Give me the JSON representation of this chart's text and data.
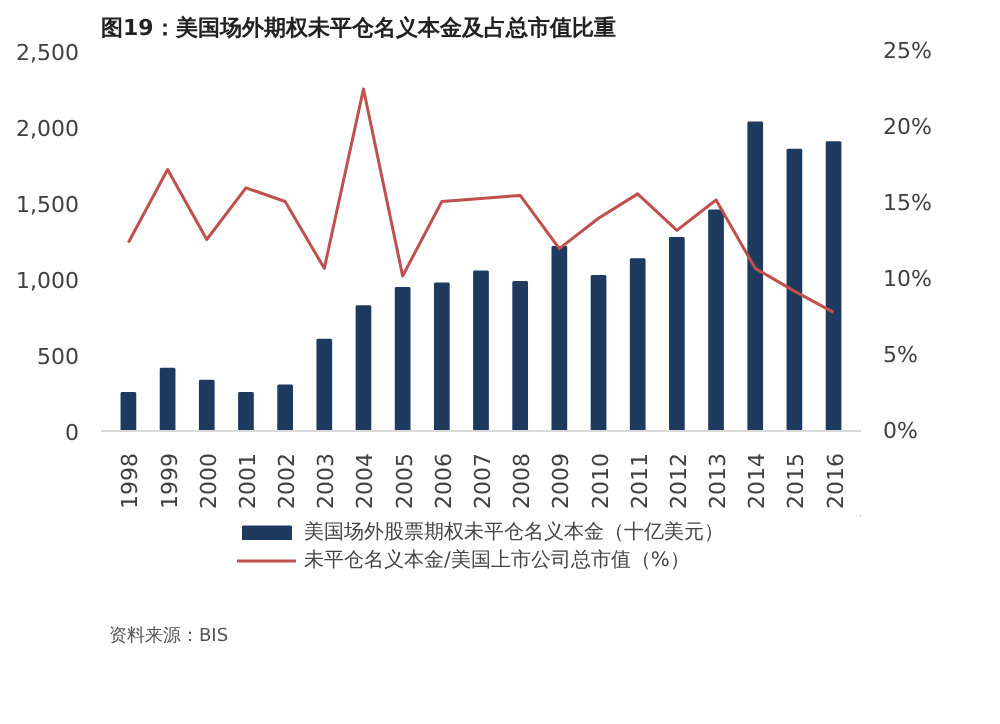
{
  "chart_data": {
    "type": "bar",
    "title": "图19：美国场外期权未平仓名义本金及占总市值比重",
    "categories": [
      "1998",
      "1999",
      "2000",
      "2001",
      "2002",
      "2003",
      "2004",
      "2005",
      "2006",
      "2007",
      "2008",
      "2009",
      "2010",
      "2011",
      "2012",
      "2013",
      "2014",
      "2015",
      "2016"
    ],
    "series": [
      {
        "name": "美国场外股票期权未平仓名义本金（十亿美元）",
        "color": "#1f3a5f",
        "values": [
          250,
          410,
          330,
          250,
          300,
          600,
          820,
          940,
          970,
          1050,
          980,
          1210,
          1020,
          1130,
          1270,
          1450,
          2030,
          1850,
          1900
        ]
      },
      {
        "name": "未平仓名义本金/美国上市公司总市值（%）",
        "type": "line",
        "axis": "y2",
        "color": "#c0504d",
        "values": [
          12.4,
          17.2,
          12.6,
          16.0,
          15.1,
          10.7,
          22.5,
          10.2,
          15.1,
          15.3,
          15.5,
          12.0,
          14.0,
          15.6,
          13.2,
          15.2,
          10.7,
          9.2,
          7.8
        ]
      }
    ],
    "ylim": [
      0,
      2500
    ],
    "yticks": [
      0,
      {
        "value": 500,
        "label": "500"
      },
      {
        "value": 1000,
        "label": "1,000"
      },
      {
        "value": 1500,
        "label": "1,500"
      },
      {
        "value": 2000,
        "label": "2,000"
      },
      {
        "value": 2500,
        "label": "2,500"
      }
    ],
    "y2lim": [
      0,
      25
    ],
    "y2ticks": [
      {
        "value": 0,
        "label": "0%"
      },
      {
        "value": 5,
        "label": "5%"
      },
      {
        "value": 10,
        "label": "10%"
      },
      {
        "value": 15,
        "label": "15%"
      },
      {
        "value": 20,
        "label": "20%"
      },
      {
        "value": 25,
        "label": "25%"
      }
    ],
    "grid": false,
    "legend": "bottom",
    "annotations": [
      "资料来源：BIS"
    ]
  }
}
